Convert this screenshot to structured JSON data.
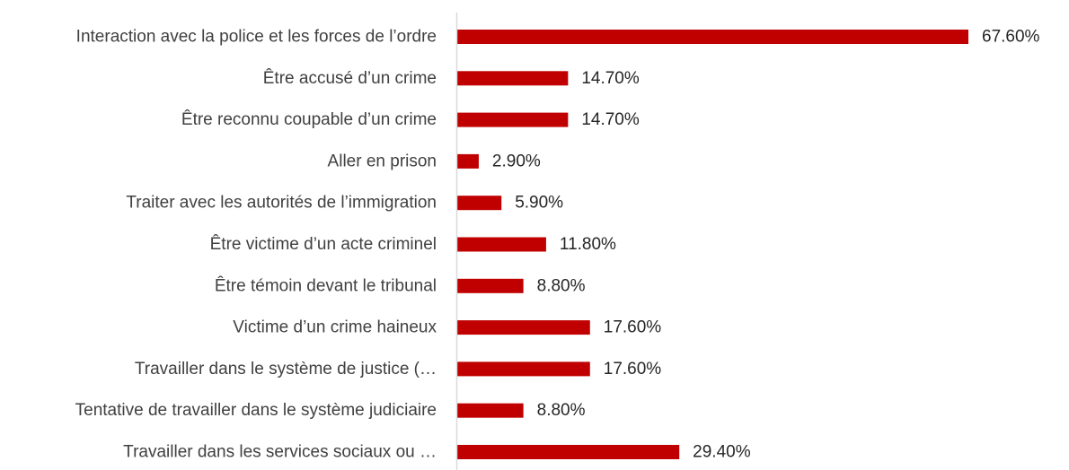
{
  "chart_data": {
    "type": "bar",
    "orientation": "horizontal",
    "categories": [
      "Interaction avec la police et les forces de l’ordre",
      "Être accusé d’un crime",
      "Être reconnu coupable d’un crime",
      "Aller en prison",
      "Traiter avec les autorités de l’immigration",
      "Être victime d’un acte criminel",
      "Être témoin devant le tribunal",
      "Victime d’un crime haineux",
      "Travailler dans le système de justice (…",
      "Tentative de travailler dans le système judiciaire",
      "Travailler dans les services sociaux ou …"
    ],
    "values": [
      67.6,
      14.7,
      14.7,
      2.9,
      5.9,
      11.8,
      8.8,
      17.6,
      17.6,
      8.8,
      29.4
    ],
    "value_labels": [
      "67.60%",
      "14.70%",
      "14.70%",
      "2.90%",
      "5.90%",
      "11.80%",
      "8.80%",
      "17.60%",
      "17.60%",
      "8.80%",
      "29.40%"
    ],
    "xlim": [
      0,
      67.6
    ],
    "bar_color": "#C00000",
    "axis_color": "#D9D9D9",
    "grid": false,
    "legend": "none"
  }
}
